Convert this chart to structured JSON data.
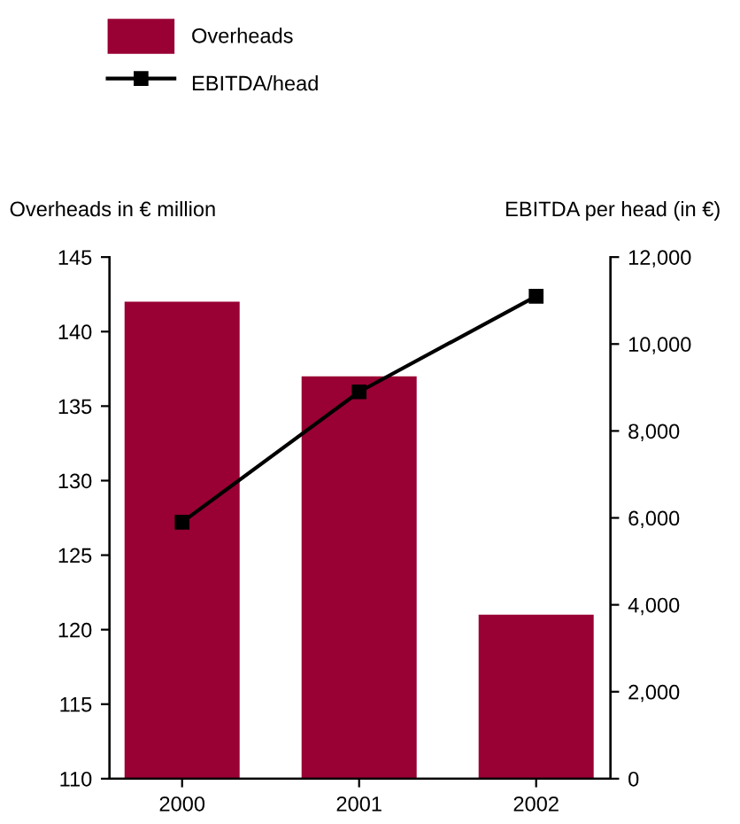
{
  "chart_data": {
    "type": "bar",
    "categories": [
      "2000",
      "2001",
      "2002"
    ],
    "ylabel": "Overheads in € million",
    "y2label": "EBITDA per head (in €)",
    "series": [
      {
        "name": "Overheads",
        "color": "#990033",
        "values": [
          142,
          137,
          121
        ]
      },
      {
        "name": "EBITDA/head",
        "type": "line",
        "axis": "y2",
        "color": "#000000",
        "values": [
          5900,
          8900,
          11100
        ]
      }
    ],
    "ylim": [
      110,
      145
    ],
    "yticks": [
      110,
      115,
      120,
      125,
      130,
      135,
      140,
      145
    ],
    "y2lim": [
      0,
      12000
    ],
    "y2ticks": [
      0,
      {
        "value": 2000,
        "label": "2,000"
      },
      {
        "value": 4000,
        "label": "4,000"
      },
      {
        "value": 6000,
        "label": "6,000"
      },
      {
        "value": 8000,
        "label": "8,000"
      },
      {
        "value": 10000,
        "label": "10,000"
      },
      {
        "value": 12000,
        "label": "12,000"
      }
    ],
    "marker": "square",
    "line_style": "solid",
    "grid": false,
    "legend": "top left"
  }
}
